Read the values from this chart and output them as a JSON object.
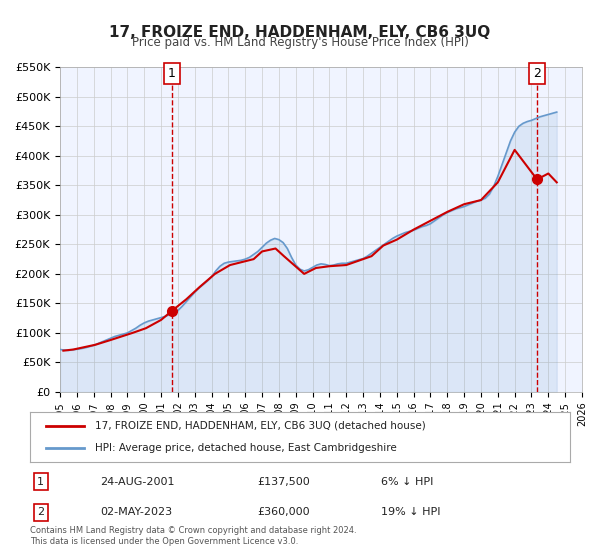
{
  "title": "17, FROIZE END, HADDENHAM, ELY, CB6 3UQ",
  "subtitle": "Price paid vs. HM Land Registry's House Price Index (HPI)",
  "legend_line1": "17, FROIZE END, HADDENHAM, ELY, CB6 3UQ (detached house)",
  "legend_line2": "HPI: Average price, detached house, East Cambridgeshire",
  "annotation1_label": "1",
  "annotation1_date": "24-AUG-2001",
  "annotation1_price": "£137,500",
  "annotation1_hpi": "6% ↓ HPI",
  "annotation2_label": "2",
  "annotation2_date": "02-MAY-2023",
  "annotation2_price": "£360,000",
  "annotation2_hpi": "19% ↓ HPI",
  "footer_line1": "Contains HM Land Registry data © Crown copyright and database right 2024.",
  "footer_line2": "This data is licensed under the Open Government Licence v3.0.",
  "ylim": [
    0,
    550000
  ],
  "yticks": [
    0,
    50000,
    100000,
    150000,
    200000,
    250000,
    300000,
    350000,
    400000,
    450000,
    500000,
    550000
  ],
  "ytick_labels": [
    "£0",
    "£50K",
    "£100K",
    "£150K",
    "£200K",
    "£250K",
    "£300K",
    "£350K",
    "£400K",
    "£450K",
    "£500K",
    "£550K"
  ],
  "xlim_start": 1995.0,
  "xlim_end": 2026.0,
  "xticks": [
    1995,
    1996,
    1997,
    1998,
    1999,
    2000,
    2001,
    2002,
    2003,
    2004,
    2005,
    2006,
    2007,
    2008,
    2009,
    2010,
    2011,
    2012,
    2013,
    2014,
    2015,
    2016,
    2017,
    2018,
    2019,
    2020,
    2021,
    2022,
    2023,
    2024,
    2025,
    2026
  ],
  "property_color": "#cc0000",
  "hpi_color": "#6699cc",
  "vline_color": "#cc0000",
  "point1_x": 2001.65,
  "point1_y": 137500,
  "point2_x": 2023.33,
  "point2_y": 360000,
  "background_color": "#ffffff",
  "plot_bg_color": "#f0f4ff",
  "grid_color": "#cccccc",
  "hpi_data_x": [
    1995.0,
    1995.25,
    1995.5,
    1995.75,
    1996.0,
    1996.25,
    1996.5,
    1996.75,
    1997.0,
    1997.25,
    1997.5,
    1997.75,
    1998.0,
    1998.25,
    1998.5,
    1998.75,
    1999.0,
    1999.25,
    1999.5,
    1999.75,
    2000.0,
    2000.25,
    2000.5,
    2000.75,
    2001.0,
    2001.25,
    2001.5,
    2001.75,
    2002.0,
    2002.25,
    2002.5,
    2002.75,
    2003.0,
    2003.25,
    2003.5,
    2003.75,
    2004.0,
    2004.25,
    2004.5,
    2004.75,
    2005.0,
    2005.25,
    2005.5,
    2005.75,
    2006.0,
    2006.25,
    2006.5,
    2006.75,
    2007.0,
    2007.25,
    2007.5,
    2007.75,
    2008.0,
    2008.25,
    2008.5,
    2008.75,
    2009.0,
    2009.25,
    2009.5,
    2009.75,
    2010.0,
    2010.25,
    2010.5,
    2010.75,
    2011.0,
    2011.25,
    2011.5,
    2011.75,
    2012.0,
    2012.25,
    2012.5,
    2012.75,
    2013.0,
    2013.25,
    2013.5,
    2013.75,
    2014.0,
    2014.25,
    2014.5,
    2014.75,
    2015.0,
    2015.25,
    2015.5,
    2015.75,
    2016.0,
    2016.25,
    2016.5,
    2016.75,
    2017.0,
    2017.25,
    2017.5,
    2017.75,
    2018.0,
    2018.25,
    2018.5,
    2018.75,
    2019.0,
    2019.25,
    2019.5,
    2019.75,
    2020.0,
    2020.25,
    2020.5,
    2020.75,
    2021.0,
    2021.25,
    2021.5,
    2021.75,
    2022.0,
    2022.25,
    2022.5,
    2022.75,
    2023.0,
    2023.25,
    2023.5,
    2023.75,
    2024.0,
    2024.25,
    2024.5
  ],
  "hpi_data_y": [
    72000,
    71000,
    70500,
    71500,
    72500,
    73500,
    75000,
    77000,
    79000,
    82000,
    85000,
    88000,
    91000,
    94000,
    96000,
    98000,
    100000,
    104000,
    108000,
    113000,
    117000,
    120000,
    122000,
    124000,
    126000,
    128000,
    131000,
    134000,
    138000,
    145000,
    153000,
    161000,
    169000,
    176000,
    182000,
    188000,
    195000,
    205000,
    213000,
    218000,
    220000,
    221000,
    222000,
    223000,
    225000,
    228000,
    233000,
    238000,
    245000,
    252000,
    257000,
    260000,
    258000,
    253000,
    243000,
    228000,
    215000,
    208000,
    205000,
    207000,
    211000,
    215000,
    217000,
    216000,
    214000,
    215000,
    217000,
    218000,
    218000,
    220000,
    222000,
    224000,
    226000,
    230000,
    235000,
    240000,
    245000,
    250000,
    255000,
    260000,
    264000,
    267000,
    270000,
    272000,
    274000,
    277000,
    280000,
    282000,
    285000,
    290000,
    295000,
    300000,
    304000,
    307000,
    310000,
    312000,
    314000,
    317000,
    320000,
    323000,
    325000,
    328000,
    335000,
    348000,
    365000,
    385000,
    405000,
    425000,
    440000,
    450000,
    455000,
    458000,
    460000,
    463000,
    466000,
    468000,
    470000,
    472000,
    474000
  ],
  "property_data_x": [
    1995.2,
    1995.8,
    1997.1,
    1998.0,
    1999.3,
    2000.1,
    2001.0,
    2001.65,
    2002.5,
    2003.3,
    2004.2,
    2005.1,
    2006.5,
    2007.0,
    2007.8,
    2008.3,
    2009.5,
    2010.2,
    2011.0,
    2012.0,
    2013.5,
    2014.2,
    2015.0,
    2016.0,
    2017.0,
    2018.0,
    2019.0,
    2020.0,
    2021.0,
    2022.0,
    2023.33,
    2024.0,
    2024.5
  ],
  "property_data_y": [
    70000,
    72000,
    80000,
    88000,
    100000,
    108000,
    122000,
    137500,
    157000,
    178000,
    200000,
    215000,
    225000,
    238000,
    243000,
    230000,
    200000,
    210000,
    213000,
    215000,
    230000,
    248000,
    258000,
    275000,
    290000,
    305000,
    318000,
    325000,
    355000,
    410000,
    360000,
    370000,
    355000
  ]
}
